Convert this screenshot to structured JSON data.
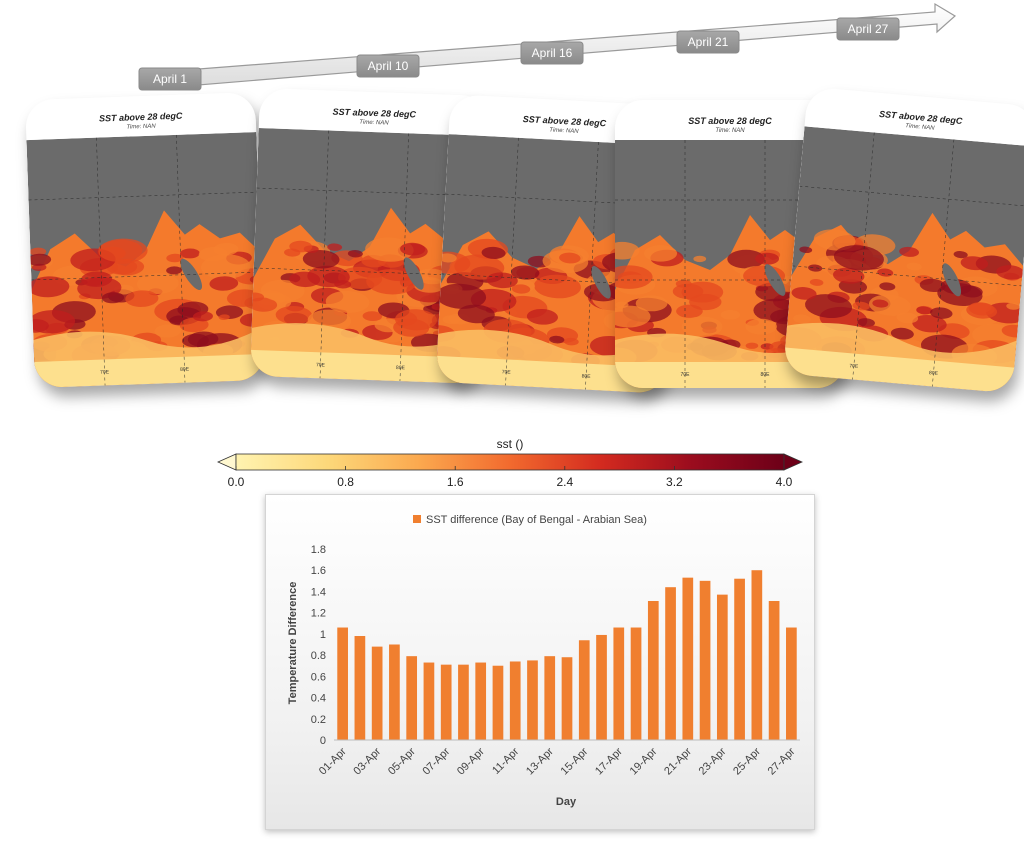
{
  "timeline": {
    "dates": [
      "April 1",
      "April 10",
      "April 16",
      "April 21",
      "April 27"
    ]
  },
  "maps": [
    {
      "title": "SST above 28 degC",
      "subtitle": "Time: NAN",
      "lon_labels": [
        "70E",
        "80E"
      ]
    },
    {
      "title": "SST above 28 degC",
      "subtitle": "Time: NAN",
      "lon_labels": [
        "70E",
        "80E"
      ]
    },
    {
      "title": "SST above 28 degC",
      "subtitle": "Time: NAN",
      "lon_labels": [
        "70E",
        "80E"
      ]
    },
    {
      "title": "SST above 28 degC",
      "subtitle": "Time: NAN",
      "lon_labels": [
        "70E",
        "80E"
      ]
    },
    {
      "title": "SST above 28 degC",
      "subtitle": "Time: NAN",
      "lon_labels": [
        "70E",
        "80E"
      ]
    }
  ],
  "colorbar": {
    "title": "sst ()",
    "ticks": [
      "0.0",
      "0.8",
      "1.6",
      "2.4",
      "3.2",
      "4.0"
    ],
    "colors": [
      "#fff3b0",
      "#fdd87a",
      "#fba94f",
      "#f26a2e",
      "#d32a1f",
      "#9a0c1e",
      "#6d0018"
    ]
  },
  "chart_data": {
    "type": "bar",
    "legend": "SST difference (Bay of Bengal - Arabian Sea)",
    "xlabel": "Day",
    "ylabel": "Temperature Difference",
    "ylim": [
      0,
      1.8
    ],
    "yticks": [
      "0",
      "0.2",
      "0.4",
      "0.6",
      "0.8",
      "1",
      "1.2",
      "1.4",
      "1.6",
      "1.8"
    ],
    "bar_color": "#f07f2f",
    "categories": [
      "01-Apr",
      "02-Apr",
      "03-Apr",
      "04-Apr",
      "05-Apr",
      "06-Apr",
      "07-Apr",
      "08-Apr",
      "09-Apr",
      "10-Apr",
      "11-Apr",
      "12-Apr",
      "13-Apr",
      "14-Apr",
      "15-Apr",
      "16-Apr",
      "17-Apr",
      "18-Apr",
      "19-Apr",
      "20-Apr",
      "21-Apr",
      "22-Apr",
      "23-Apr",
      "24-Apr",
      "25-Apr",
      "26-Apr",
      "27-Apr"
    ],
    "tick_labels": [
      "01-Apr",
      "03-Apr",
      "05-Apr",
      "07-Apr",
      "09-Apr",
      "11-Apr",
      "13-Apr",
      "15-Apr",
      "17-Apr",
      "19-Apr",
      "21-Apr",
      "23-Apr",
      "25-Apr",
      "27-Apr"
    ],
    "values": [
      1.06,
      0.98,
      0.88,
      0.9,
      0.79,
      0.73,
      0.71,
      0.71,
      0.73,
      0.7,
      0.74,
      0.75,
      0.79,
      0.78,
      0.94,
      0.99,
      1.06,
      1.06,
      1.31,
      1.44,
      1.53,
      1.5,
      1.37,
      1.52,
      1.6,
      1.31,
      1.06
    ],
    "grid": false,
    "legend_position": "top"
  }
}
